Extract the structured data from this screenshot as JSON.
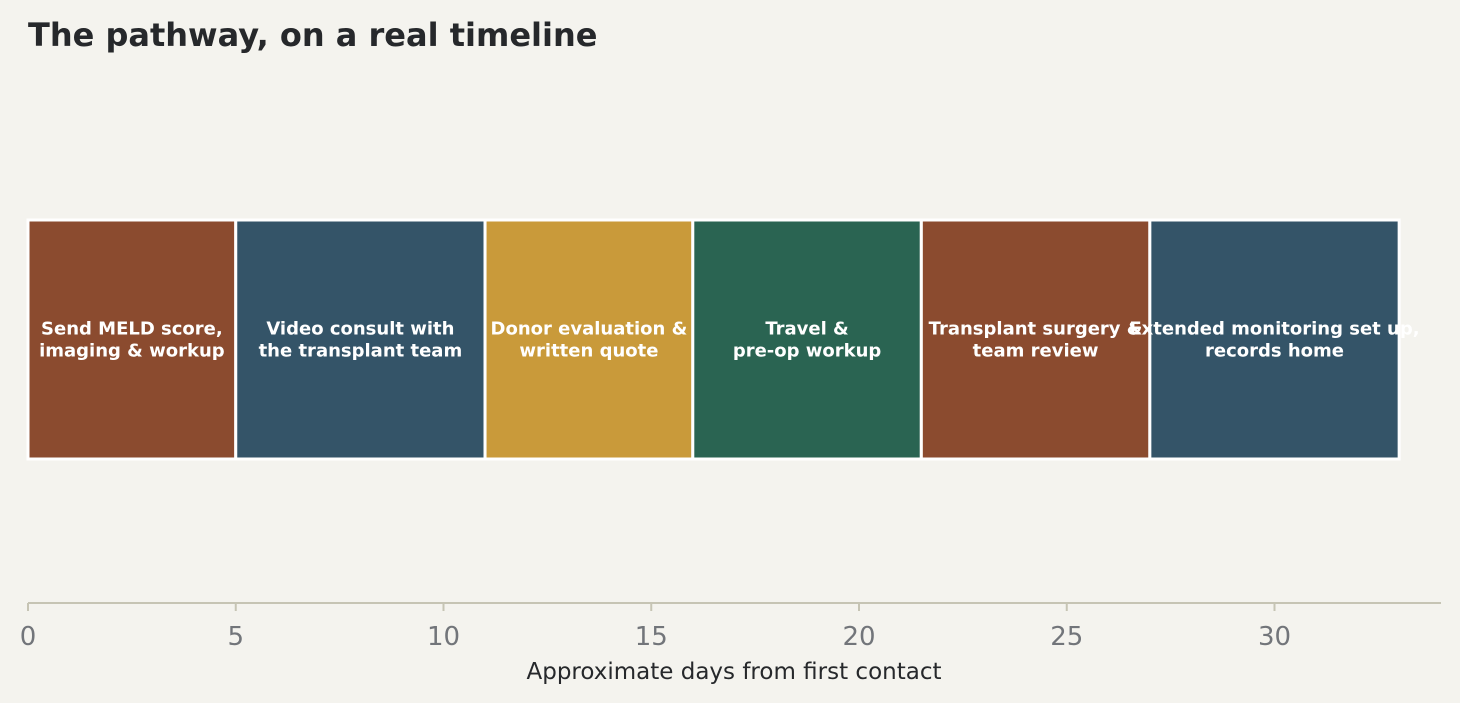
{
  "chart_data": {
    "type": "bar",
    "orientation": "horizontal-stacked-timeline",
    "title": "The pathway, on a real timeline",
    "xlabel": "Approximate days from first contact",
    "ylabel": "",
    "xlim": [
      0,
      34
    ],
    "xticks": [
      0,
      5,
      10,
      15,
      20,
      25,
      30
    ],
    "grid": false,
    "legend": "none",
    "colors": {
      "background": "#f4f3ee",
      "axis": "#c6c4b4",
      "tick_text": "#72757a",
      "title_text": "#26282b",
      "segment_text": "#ffffff",
      "segment_border": "#ffffff"
    },
    "segments": [
      {
        "label": [
          "Send MELD score,",
          "imaging & workup"
        ],
        "start": 0,
        "end": 5,
        "color": "#8b4b2f"
      },
      {
        "label": [
          "Video consult with",
          "the transplant team"
        ],
        "start": 5,
        "end": 11,
        "color": "#345468"
      },
      {
        "label": [
          "Donor evaluation &",
          "written quote"
        ],
        "start": 11,
        "end": 16,
        "color": "#c99a3a"
      },
      {
        "label": [
          "Travel &",
          "pre-op workup"
        ],
        "start": 16,
        "end": 21.5,
        "color": "#2a6452"
      },
      {
        "label": [
          "Transplant surgery &",
          "team review"
        ],
        "start": 21.5,
        "end": 27,
        "color": "#8b4b2f"
      },
      {
        "label": [
          "Extended monitoring set up,",
          "records home"
        ],
        "start": 27,
        "end": 33,
        "color": "#345468"
      }
    ]
  }
}
